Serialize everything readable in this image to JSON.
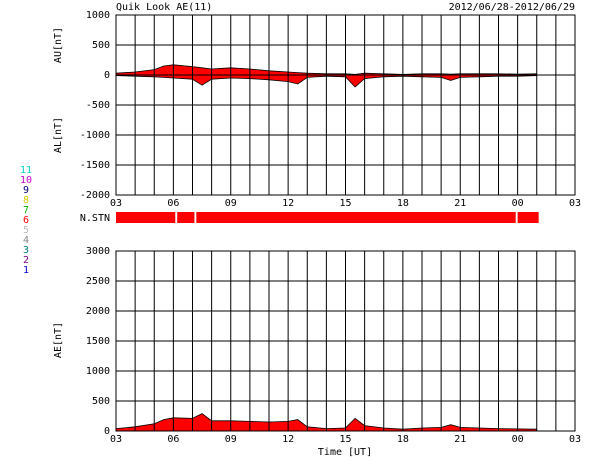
{
  "header": {
    "title": "Quik Look AE(11)",
    "date": "2012/06/28-2012/06/29"
  },
  "legend_numbers": [
    {
      "label": "11",
      "color": "#00cccc"
    },
    {
      "label": "10",
      "color": "#cc00cc"
    },
    {
      "label": "9",
      "color": "#000080"
    },
    {
      "label": "8",
      "color": "#cccc00"
    },
    {
      "label": "7",
      "color": "#00aa00"
    },
    {
      "label": "6",
      "color": "#ff0000"
    },
    {
      "label": "5",
      "color": "#bbbbbb"
    },
    {
      "label": "4",
      "color": "#888888"
    },
    {
      "label": "3",
      "color": "#008080"
    },
    {
      "label": "2",
      "color": "#800080"
    },
    {
      "label": "1",
      "color": "#0000cc"
    }
  ],
  "n_stn": {
    "label": "N.STN",
    "color": "#ff0000",
    "segments": [
      [
        0,
        3.1
      ],
      [
        3.2,
        4.1
      ],
      [
        4.2,
        20.9
      ],
      [
        21.0,
        22.1
      ]
    ]
  },
  "xlabel": "Time [UT]",
  "chart_data": [
    {
      "type": "area",
      "ylabels": [
        "AU[nT]",
        "AL[nT]"
      ],
      "x": [
        0,
        1,
        2,
        2.5,
        3,
        4,
        4.5,
        5,
        6,
        7,
        8,
        9,
        9.5,
        10,
        11,
        12,
        12.5,
        13,
        14,
        15,
        16,
        17,
        17.5,
        18,
        19,
        20,
        21,
        22
      ],
      "series": [
        {
          "name": "AU",
          "color": "#ff0000",
          "values": [
            30,
            50,
            90,
            150,
            170,
            140,
            120,
            100,
            120,
            100,
            70,
            50,
            40,
            30,
            20,
            20,
            10,
            30,
            20,
            10,
            20,
            20,
            15,
            20,
            20,
            20,
            15,
            20
          ]
        },
        {
          "name": "AL",
          "color": "#ff0000",
          "values": [
            -10,
            -20,
            -30,
            -40,
            -50,
            -70,
            -170,
            -70,
            -50,
            -60,
            -80,
            -110,
            -150,
            -40,
            -20,
            -30,
            -200,
            -60,
            -30,
            -20,
            -30,
            -40,
            -90,
            -40,
            -30,
            -20,
            -20,
            -10
          ]
        }
      ],
      "xlim": [
        0,
        24
      ],
      "xticks": [
        {
          "value": 0,
          "label": "03"
        },
        {
          "value": 3,
          "label": "06"
        },
        {
          "value": 6,
          "label": "09"
        },
        {
          "value": 9,
          "label": "12"
        },
        {
          "value": 12,
          "label": "15"
        },
        {
          "value": 15,
          "label": "18"
        },
        {
          "value": 18,
          "label": "21"
        },
        {
          "value": 21,
          "label": "00"
        },
        {
          "value": 24,
          "label": "03"
        }
      ],
      "xgrid": [
        0,
        1,
        2,
        3,
        4,
        5,
        6,
        7,
        8,
        9,
        10,
        11,
        12,
        13,
        14,
        15,
        16,
        17,
        18,
        19,
        20,
        21,
        22,
        23,
        24
      ],
      "ylim": [
        -2000,
        1000
      ],
      "yticks": [
        -2000,
        -1500,
        -1000,
        -500,
        0,
        500,
        1000
      ]
    },
    {
      "type": "area",
      "ylabels": [
        "AE[nT]"
      ],
      "x": [
        0,
        1,
        2,
        2.5,
        3,
        4,
        4.5,
        5,
        6,
        7,
        8,
        9,
        9.5,
        10,
        11,
        12,
        12.5,
        13,
        14,
        15,
        16,
        17,
        17.5,
        18,
        19,
        20,
        21,
        22
      ],
      "series": [
        {
          "name": "AE",
          "color": "#ff0000",
          "values": [
            40,
            70,
            120,
            190,
            220,
            210,
            290,
            170,
            170,
            160,
            150,
            160,
            190,
            70,
            40,
            50,
            210,
            90,
            50,
            30,
            50,
            60,
            105,
            60,
            50,
            40,
            35,
            30
          ]
        }
      ],
      "xlim": [
        0,
        24
      ],
      "xticks": [
        {
          "value": 0,
          "label": "03"
        },
        {
          "value": 3,
          "label": "06"
        },
        {
          "value": 6,
          "label": "09"
        },
        {
          "value": 9,
          "label": "12"
        },
        {
          "value": 12,
          "label": "15"
        },
        {
          "value": 15,
          "label": "18"
        },
        {
          "value": 18,
          "label": "21"
        },
        {
          "value": 21,
          "label": "00"
        },
        {
          "value": 24,
          "label": "03"
        }
      ],
      "xgrid": [
        0,
        1,
        2,
        3,
        4,
        5,
        6,
        7,
        8,
        9,
        10,
        11,
        12,
        13,
        14,
        15,
        16,
        17,
        18,
        19,
        20,
        21,
        22,
        23,
        24
      ],
      "ylim": [
        0,
        3000
      ],
      "yticks": [
        0,
        500,
        1000,
        1500,
        2000,
        2500,
        3000
      ]
    }
  ]
}
